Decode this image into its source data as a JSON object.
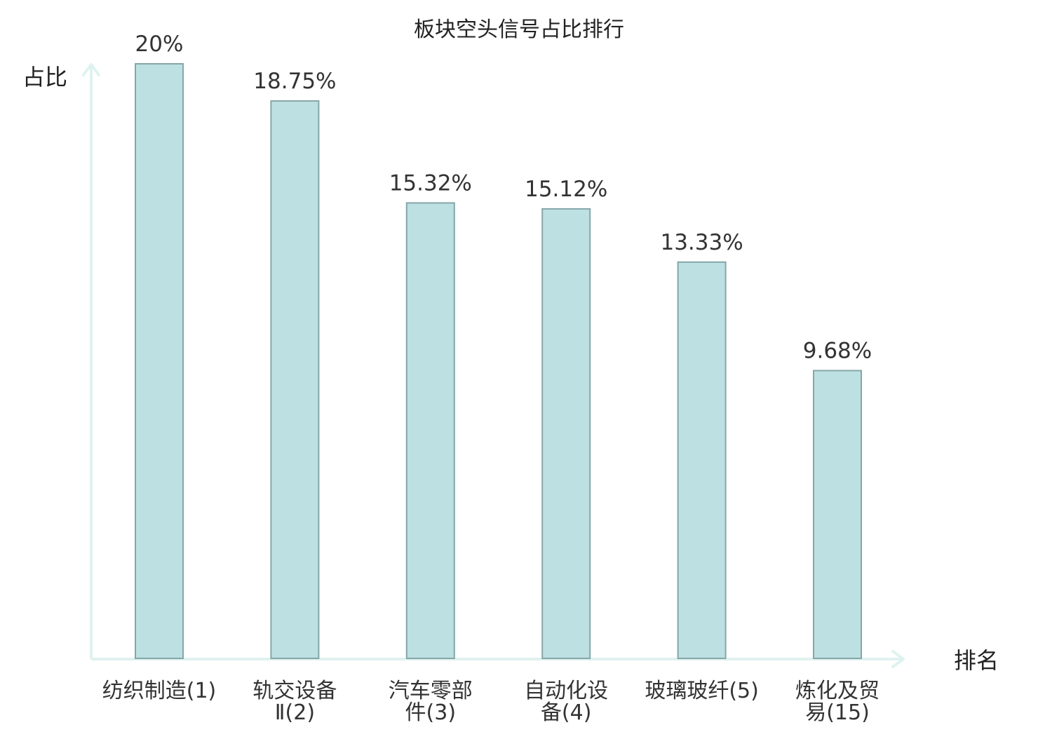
{
  "chart_data": {
    "type": "bar",
    "title": "板块空头信号占比排行",
    "xlabel": "排名",
    "ylabel": "占比",
    "ylim": [
      0,
      20
    ],
    "grid": false,
    "legend": "none",
    "categories": [
      [
        "纺织制造(1)"
      ],
      [
        "轨交设备",
        "Ⅱ(2)"
      ],
      [
        "汽车零部",
        "件(3)"
      ],
      [
        "自动化设",
        "备(4)"
      ],
      [
        "玻璃玻纤(5)"
      ],
      [
        "炼化及贸",
        "易(15)"
      ]
    ],
    "values": [
      20,
      18.75,
      15.32,
      15.12,
      13.33,
      9.68
    ],
    "value_labels": [
      "20%",
      "18.75%",
      "15.32%",
      "15.12%",
      "13.33%",
      "9.68%"
    ],
    "highlight_index": 5,
    "colors": {
      "bar_fill": "#bde0e3",
      "bar_stroke": "#86a6a8",
      "axis": "#dff2f0",
      "text": "#333333",
      "highlight_text": "#e8151b"
    }
  }
}
